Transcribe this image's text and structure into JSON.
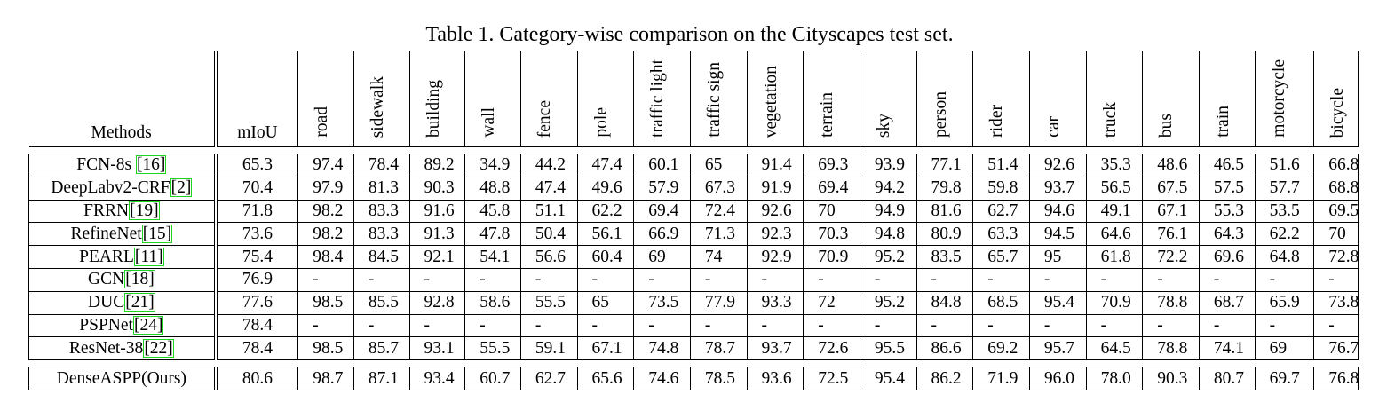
{
  "caption": "Table 1. Category-wise comparison on the Cityscapes test set.",
  "columns": {
    "methods": "Methods",
    "miou": "mIoU",
    "categories": [
      "road",
      "sidewalk",
      "building",
      "wall",
      "fence",
      "pole",
      "traffic light",
      "traffic sign",
      "vegetation",
      "terrain",
      "sky",
      "person",
      "rider",
      "car",
      "truck",
      "bus",
      "train",
      "motorcycle",
      "bicycle"
    ]
  },
  "rows": [
    {
      "name": "FCN-8s ",
      "ref": "[16]",
      "miou": "65.3",
      "values": [
        "97.4",
        "78.4",
        "89.2",
        "34.9",
        "44.2",
        "47.4",
        "60.1",
        "65",
        "91.4",
        "69.3",
        "93.9",
        "77.1",
        "51.4",
        "92.6",
        "35.3",
        "48.6",
        "46.5",
        "51.6",
        "66.8"
      ]
    },
    {
      "name": "DeepLabv2-CRF",
      "ref": "[2]",
      "miou": "70.4",
      "values": [
        "97.9",
        "81.3",
        "90.3",
        "48.8",
        "47.4",
        "49.6",
        "57.9",
        "67.3",
        "91.9",
        "69.4",
        "94.2",
        "79.8",
        "59.8",
        "93.7",
        "56.5",
        "67.5",
        "57.5",
        "57.7",
        "68.8"
      ]
    },
    {
      "name": "FRRN",
      "ref": "[19]",
      "miou": "71.8",
      "values": [
        "98.2",
        "83.3",
        "91.6",
        "45.8",
        "51.1",
        "62.2",
        "69.4",
        "72.4",
        "92.6",
        "70",
        "94.9",
        "81.6",
        "62.7",
        "94.6",
        "49.1",
        "67.1",
        "55.3",
        "53.5",
        "69.5"
      ]
    },
    {
      "name": "RefineNet",
      "ref": "[15]",
      "miou": "73.6",
      "values": [
        "98.2",
        "83.3",
        "91.3",
        "47.8",
        "50.4",
        "56.1",
        "66.9",
        "71.3",
        "92.3",
        "70.3",
        "94.8",
        "80.9",
        "63.3",
        "94.5",
        "64.6",
        "76.1",
        "64.3",
        "62.2",
        "70"
      ]
    },
    {
      "name": "PEARL",
      "ref": "[11]",
      "miou": "75.4",
      "values": [
        "98.4",
        "84.5",
        "92.1",
        "54.1",
        "56.6",
        "60.4",
        "69",
        "74",
        "92.9",
        "70.9",
        "95.2",
        "83.5",
        "65.7",
        "95",
        "61.8",
        "72.2",
        "69.6",
        "64.8",
        "72.8"
      ]
    },
    {
      "name": "GCN",
      "ref": "[18]",
      "miou": "76.9",
      "values": [
        "-",
        "-",
        "-",
        "-",
        "-",
        "-",
        "-",
        "-",
        "-",
        "-",
        "-",
        "-",
        "-",
        "-",
        "-",
        "-",
        "-",
        "-",
        "-"
      ]
    },
    {
      "name": "DUC",
      "ref": "[21]",
      "miou": "77.6",
      "values": [
        "98.5",
        "85.5",
        "92.8",
        "58.6",
        "55.5",
        "65",
        "73.5",
        "77.9",
        "93.3",
        "72",
        "95.2",
        "84.8",
        "68.5",
        "95.4",
        "70.9",
        "78.8",
        "68.7",
        "65.9",
        "73.8"
      ]
    },
    {
      "name": "PSPNet",
      "ref": "[24]",
      "miou": "78.4",
      "values": [
        "-",
        "-",
        "-",
        "-",
        "-",
        "-",
        "-",
        "-",
        "-",
        "-",
        "-",
        "-",
        "-",
        "-",
        "-",
        "-",
        "-",
        "-",
        "-"
      ]
    },
    {
      "name": "ResNet-38",
      "ref": "[22]",
      "miou": "78.4",
      "values": [
        "98.5",
        "85.7",
        "93.1",
        "55.5",
        "59.1",
        "67.1",
        "74.8",
        "78.7",
        "93.7",
        "72.6",
        "95.5",
        "86.6",
        "69.2",
        "95.7",
        "64.5",
        "78.8",
        "74.1",
        "69",
        "76.7"
      ]
    }
  ],
  "ours": {
    "name": "DenseASPP(Ours)",
    "miou": "80.6",
    "values": [
      "98.7",
      "87.1",
      "93.4",
      "60.7",
      "62.7",
      "65.6",
      "74.6",
      "78.5",
      "93.6",
      "72.5",
      "95.4",
      "86.2",
      "71.9",
      "96.0",
      "78.0",
      "90.3",
      "80.7",
      "69.7",
      "76.8"
    ]
  }
}
